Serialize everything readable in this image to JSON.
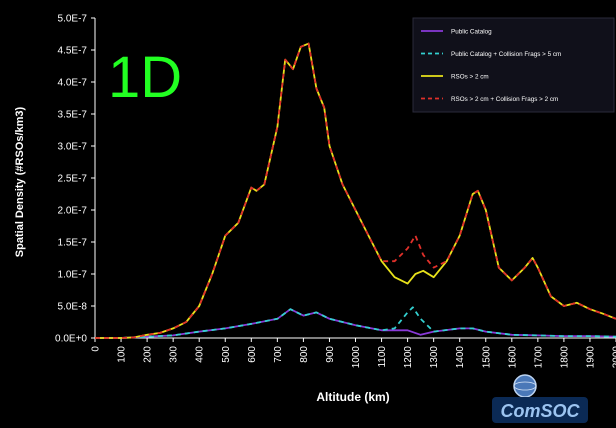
{
  "panel_label": "1D",
  "logo_text": "ComSOC",
  "chart_data": {
    "type": "line",
    "title": "",
    "xlabel": "Altitude (km)",
    "ylabel": "Spatial Density (#RSOs/km3)",
    "xlim": [
      0,
      2000
    ],
    "ylim": [
      0,
      5e-07
    ],
    "x_ticks": [
      0,
      100,
      200,
      300,
      400,
      500,
      600,
      700,
      800,
      900,
      1000,
      1100,
      1200,
      1300,
      1400,
      1500,
      1600,
      1700,
      1800,
      1900,
      2000
    ],
    "x_tick_labels": [
      "0",
      "100",
      "200",
      "300",
      "400",
      "500",
      "600",
      "700",
      "800",
      "900",
      "1000",
      "1100",
      "1200",
      "1300",
      "1400",
      "1500",
      "1600",
      "1700",
      "1800",
      "1900",
      "2000"
    ],
    "y_ticks": [
      0,
      5e-08,
      1e-07,
      1.5e-07,
      2e-07,
      2.5e-07,
      3e-07,
      3.5e-07,
      4e-07,
      4.5e-07,
      5e-07
    ],
    "y_tick_labels": [
      "0.0E+0",
      "5.0E-8",
      "1.0E-7",
      "1.5E-7",
      "2.0E-7",
      "2.5E-7",
      "3.0E-7",
      "3.5E-7",
      "4.0E-7",
      "4.5E-7",
      "5.0E-7"
    ],
    "grid": false,
    "legend_position": "top-right",
    "colors": {
      "background": "#000000",
      "axis": "#ffffff",
      "text": "#ffffff",
      "panel_label": "#22ff22",
      "legend_bg": "#10101a"
    },
    "series": [
      {
        "name": "Public Catalog",
        "color": "#8a3ad8",
        "dash": "solid",
        "x": [
          0,
          100,
          200,
          300,
          400,
          500,
          600,
          700,
          750,
          800,
          850,
          900,
          1000,
          1100,
          1200,
          1250,
          1300,
          1400,
          1450,
          1500,
          1600,
          1700,
          1800,
          1900,
          2000
        ],
        "y": [
          0,
          0,
          2e-09,
          4e-09,
          1e-08,
          1.5e-08,
          2.2e-08,
          3e-08,
          4.5e-08,
          3.5e-08,
          4e-08,
          3e-08,
          2e-08,
          1.2e-08,
          1.2e-08,
          5e-09,
          1e-08,
          1.5e-08,
          1.5e-08,
          1e-08,
          5e-09,
          4e-09,
          3e-09,
          3e-09,
          2e-09
        ]
      },
      {
        "name": "Public Catalog + Collision Frags > 5 cm",
        "color": "#33d0d0",
        "dash": "dashed",
        "x": [
          0,
          100,
          200,
          300,
          400,
          500,
          600,
          700,
          750,
          800,
          850,
          900,
          1000,
          1100,
          1150,
          1200,
          1220,
          1250,
          1300,
          1400,
          1450,
          1500,
          1600,
          1700,
          1800,
          1900,
          2000
        ],
        "y": [
          0,
          0,
          2e-09,
          4e-09,
          1e-08,
          1.5e-08,
          2.2e-08,
          3e-08,
          4.5e-08,
          3.5e-08,
          4e-08,
          3e-08,
          2e-08,
          1.2e-08,
          1.5e-08,
          4e-08,
          4.8e-08,
          3e-08,
          1e-08,
          1.5e-08,
          1.5e-08,
          1e-08,
          5e-09,
          4e-09,
          3e-09,
          3e-09,
          2e-09
        ]
      },
      {
        "name": "RSOs > 2 cm",
        "color": "#e8e21a",
        "dash": "solid",
        "x": [
          0,
          100,
          150,
          200,
          250,
          300,
          350,
          400,
          450,
          500,
          550,
          600,
          620,
          650,
          700,
          730,
          760,
          790,
          820,
          850,
          880,
          900,
          950,
          1000,
          1050,
          1100,
          1150,
          1200,
          1230,
          1260,
          1300,
          1350,
          1400,
          1450,
          1470,
          1500,
          1550,
          1600,
          1650,
          1680,
          1700,
          1750,
          1800,
          1850,
          1900,
          1950,
          2000
        ],
        "y": [
          0,
          0,
          1e-09,
          5e-09,
          8e-09,
          1.5e-08,
          2.5e-08,
          5e-08,
          1e-07,
          1.6e-07,
          1.8e-07,
          2.35e-07,
          2.3e-07,
          2.4e-07,
          3.3e-07,
          4.35e-07,
          4.2e-07,
          4.55e-07,
          4.6e-07,
          3.9e-07,
          3.6e-07,
          3e-07,
          2.4e-07,
          2e-07,
          1.6e-07,
          1.2e-07,
          9.5e-08,
          8.5e-08,
          1e-07,
          1.05e-07,
          9.5e-08,
          1.2e-07,
          1.6e-07,
          2.25e-07,
          2.3e-07,
          2e-07,
          1.1e-07,
          9e-08,
          1.1e-07,
          1.25e-07,
          1.1e-07,
          6.5e-08,
          5e-08,
          5.5e-08,
          4.5e-08,
          3.8e-08,
          3e-08
        ]
      },
      {
        "name": "RSOs > 2 cm + Collision Frags > 2 cm",
        "color": "#e0302a",
        "dash": "dashed",
        "x": [
          0,
          100,
          150,
          200,
          250,
          300,
          350,
          400,
          450,
          500,
          550,
          600,
          620,
          650,
          700,
          730,
          760,
          790,
          820,
          850,
          880,
          900,
          950,
          1000,
          1050,
          1100,
          1150,
          1200,
          1230,
          1260,
          1300,
          1350,
          1400,
          1450,
          1470,
          1500,
          1550,
          1600,
          1650,
          1680,
          1700,
          1750,
          1800,
          1850,
          1900,
          1950,
          2000
        ],
        "y": [
          0,
          0,
          1e-09,
          5e-09,
          8e-09,
          1.5e-08,
          2.5e-08,
          5e-08,
          1e-07,
          1.6e-07,
          1.8e-07,
          2.35e-07,
          2.3e-07,
          2.4e-07,
          3.3e-07,
          4.35e-07,
          4.2e-07,
          4.55e-07,
          4.6e-07,
          3.9e-07,
          3.6e-07,
          3e-07,
          2.4e-07,
          2e-07,
          1.6e-07,
          1.2e-07,
          1.2e-07,
          1.4e-07,
          1.6e-07,
          1.3e-07,
          1.1e-07,
          1.2e-07,
          1.6e-07,
          2.25e-07,
          2.3e-07,
          2e-07,
          1.1e-07,
          9e-08,
          1.1e-07,
          1.25e-07,
          1.1e-07,
          6.5e-08,
          5e-08,
          5.5e-08,
          4.5e-08,
          3.8e-08,
          3e-08
        ]
      }
    ]
  }
}
